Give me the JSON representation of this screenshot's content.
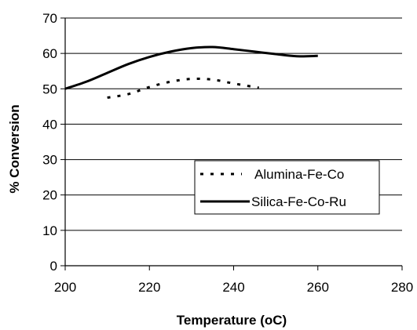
{
  "chart_data": {
    "type": "line",
    "xlabel": "Temperature (oC)",
    "ylabel": "% Conversion",
    "xlim": [
      200,
      280
    ],
    "ylim": [
      0,
      70
    ],
    "x_ticks": [
      "200",
      "220",
      "240",
      "260",
      "280"
    ],
    "y_ticks": [
      "0",
      "10",
      "20",
      "30",
      "40",
      "50",
      "60",
      "70"
    ],
    "grid": "horizontal",
    "legend_position": "right",
    "series": [
      {
        "name": "Alumina-Fe-Co",
        "style": "dotted",
        "color": "#000000",
        "x": [
          210,
          215,
          220,
          225,
          230,
          235,
          240,
          246
        ],
        "y": [
          47.5,
          48.5,
          50.5,
          52.0,
          52.8,
          52.6,
          51.5,
          50.3
        ]
      },
      {
        "name": "Silica-Fe-Co-Ru",
        "style": "solid",
        "color": "#000000",
        "x": [
          200,
          205,
          210,
          215,
          220,
          225,
          230,
          235,
          240,
          245,
          250,
          255,
          260
        ],
        "y": [
          50.0,
          52.0,
          54.5,
          57.0,
          59.0,
          60.5,
          61.5,
          61.8,
          61.2,
          60.5,
          59.8,
          59.2,
          59.3
        ]
      }
    ]
  }
}
